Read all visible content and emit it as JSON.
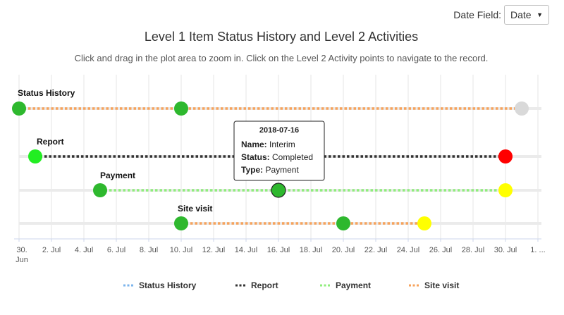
{
  "controls": {
    "date_field_label": "Date Field:",
    "date_field_value": "Date"
  },
  "chart_data": {
    "type": "scatter",
    "title": "Level 1 Item Status History and Level 2 Activities",
    "subtitle": "Click and drag in the plot area to zoom in. Click on the Level 2 Activity points to navigate to the record.",
    "x_axis": {
      "type": "date",
      "range": [
        "2018-06-30",
        "2018-07-31"
      ],
      "ticks": [
        "30. Jun",
        "2. Jul",
        "4. Jul",
        "6. Jul",
        "8. Jul",
        "10. Jul",
        "12. Jul",
        "14. Jul",
        "16. Jul",
        "18. Jul",
        "20. Jul",
        "22. Jul",
        "24. Jul",
        "26. Jul",
        "28. Jul",
        "30. Jul",
        "1. ..."
      ]
    },
    "grid": true,
    "legend_position": "bottom",
    "series": [
      {
        "name": "Status History",
        "line_color": "#f7a35c",
        "legend_color": "#7cb5ec",
        "points": [
          {
            "x": "2018-06-30",
            "color": "#2eb82e"
          },
          {
            "x": "2018-07-10",
            "color": "#2eb82e"
          },
          {
            "x": "2018-07-31",
            "color": "#d9d9d9"
          }
        ]
      },
      {
        "name": "Report",
        "line_color": "#333333",
        "legend_color": "#333333",
        "points": [
          {
            "x": "2018-07-01",
            "color": "#22ee22"
          },
          {
            "x": "2018-07-30",
            "color": "#ff0000"
          }
        ]
      },
      {
        "name": "Payment",
        "line_color": "#90ed7d",
        "legend_color": "#90ed7d",
        "points": [
          {
            "x": "2018-07-05",
            "color": "#2eb82e"
          },
          {
            "x": "2018-07-16",
            "color": "#2eb82e"
          },
          {
            "x": "2018-07-30",
            "color": "#ffff00"
          }
        ]
      },
      {
        "name": "Site visit",
        "line_color": "#f7a35c",
        "legend_color": "#f7a35c",
        "points": [
          {
            "x": "2018-07-10",
            "color": "#2eb82e"
          },
          {
            "x": "2018-07-20",
            "color": "#2eb82e"
          },
          {
            "x": "2018-07-25",
            "color": "#ffff00"
          }
        ]
      }
    ],
    "tooltip": {
      "date": "2018-07-16",
      "lines": [
        {
          "key": "Name",
          "value": "Interim"
        },
        {
          "key": "Status",
          "value": "Completed"
        },
        {
          "key": "Type",
          "value": "Payment"
        }
      ]
    }
  }
}
